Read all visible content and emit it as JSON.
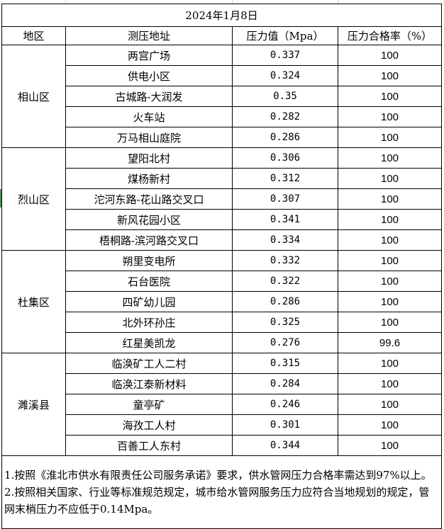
{
  "title": "2024年1月8日",
  "headers": [
    "地区",
    "测压地址",
    "压力值（Mpa）",
    "压力合格率（%）"
  ],
  "districts": [
    {
      "name": "相山区",
      "rows": [
        {
          "address": "两宫广场",
          "pressure": "0.337",
          "rate": "100"
        },
        {
          "address": "供电小区",
          "pressure": "0.324",
          "rate": "100"
        },
        {
          "address": "古城路-大润发",
          "pressure": "0.35",
          "rate": "100"
        },
        {
          "address": "火车站",
          "pressure": "0.282",
          "rate": "100"
        },
        {
          "address": "万马相山庭院",
          "pressure": "0.286",
          "rate": "100"
        }
      ]
    },
    {
      "name": "烈山区",
      "rows": [
        {
          "address": "望阳北村",
          "pressure": "0.306",
          "rate": "100"
        },
        {
          "address": "煤杨新村",
          "pressure": "0.312",
          "rate": "100"
        },
        {
          "address": "沱河东路-花山路交叉口",
          "pressure": "0.307",
          "rate": "100"
        },
        {
          "address": "新风花园小区",
          "pressure": "0.341",
          "rate": "100"
        },
        {
          "address": "梧桐路-滨河路交叉口",
          "pressure": "0.334",
          "rate": "100"
        }
      ]
    },
    {
      "name": "杜集区",
      "rows": [
        {
          "address": "朔里变电所",
          "pressure": "0.332",
          "rate": "100"
        },
        {
          "address": "石台医院",
          "pressure": "0.322",
          "rate": "100"
        },
        {
          "address": "四矿幼儿园",
          "pressure": "0.286",
          "rate": "100"
        },
        {
          "address": "北外环孙庄",
          "pressure": "0.325",
          "rate": "100"
        },
        {
          "address": "红星美凯龙",
          "pressure": "0.276",
          "rate": "99.6"
        }
      ]
    },
    {
      "name": "濉溪县",
      "rows": [
        {
          "address": "临涣矿工人二村",
          "pressure": "0.315",
          "rate": "100"
        },
        {
          "address": "临涣江泰新材料",
          "pressure": "0.284",
          "rate": "100"
        },
        {
          "address": "童亭矿",
          "pressure": "0.246",
          "rate": "100"
        },
        {
          "address": "海孜工人村",
          "pressure": "0.301",
          "rate": "100"
        },
        {
          "address": "百善工人东村",
          "pressure": "0.344",
          "rate": "100"
        }
      ]
    }
  ],
  "notes": [
    "1.按照《淮北市供水有限责任公司服务承诺》要求，供水管网压力合格率需达到97%以上。",
    "2.按照相关国家、行业等标准规范规定，城市给水管网服务压力应符合当地规划的规定，管网末梢压力不应低于0.14Mpa。"
  ]
}
